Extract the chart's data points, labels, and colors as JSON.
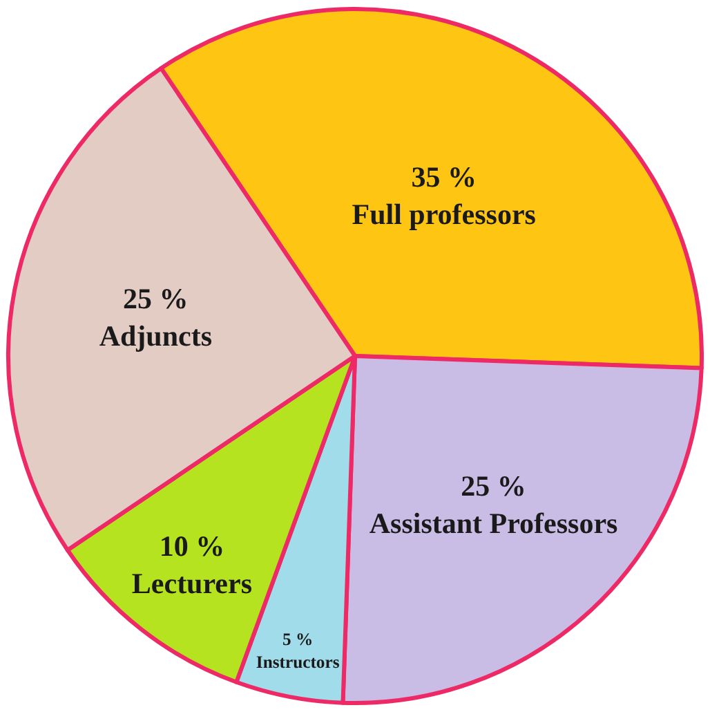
{
  "chart_data": {
    "type": "pie",
    "categories": [
      "Full professors",
      "Assistant Professors",
      "Instructors",
      "Lecturers",
      "Adjuncts"
    ],
    "values": [
      35,
      25,
      5,
      10,
      25
    ],
    "value_labels": [
      "35 %",
      "25 %",
      "5 %",
      "10 %",
      "25 %"
    ],
    "colors": [
      "#fec513",
      "#c9bde6",
      "#a0dcea",
      "#b5e31f",
      "#e3ccc4"
    ],
    "legend": false
  }
}
